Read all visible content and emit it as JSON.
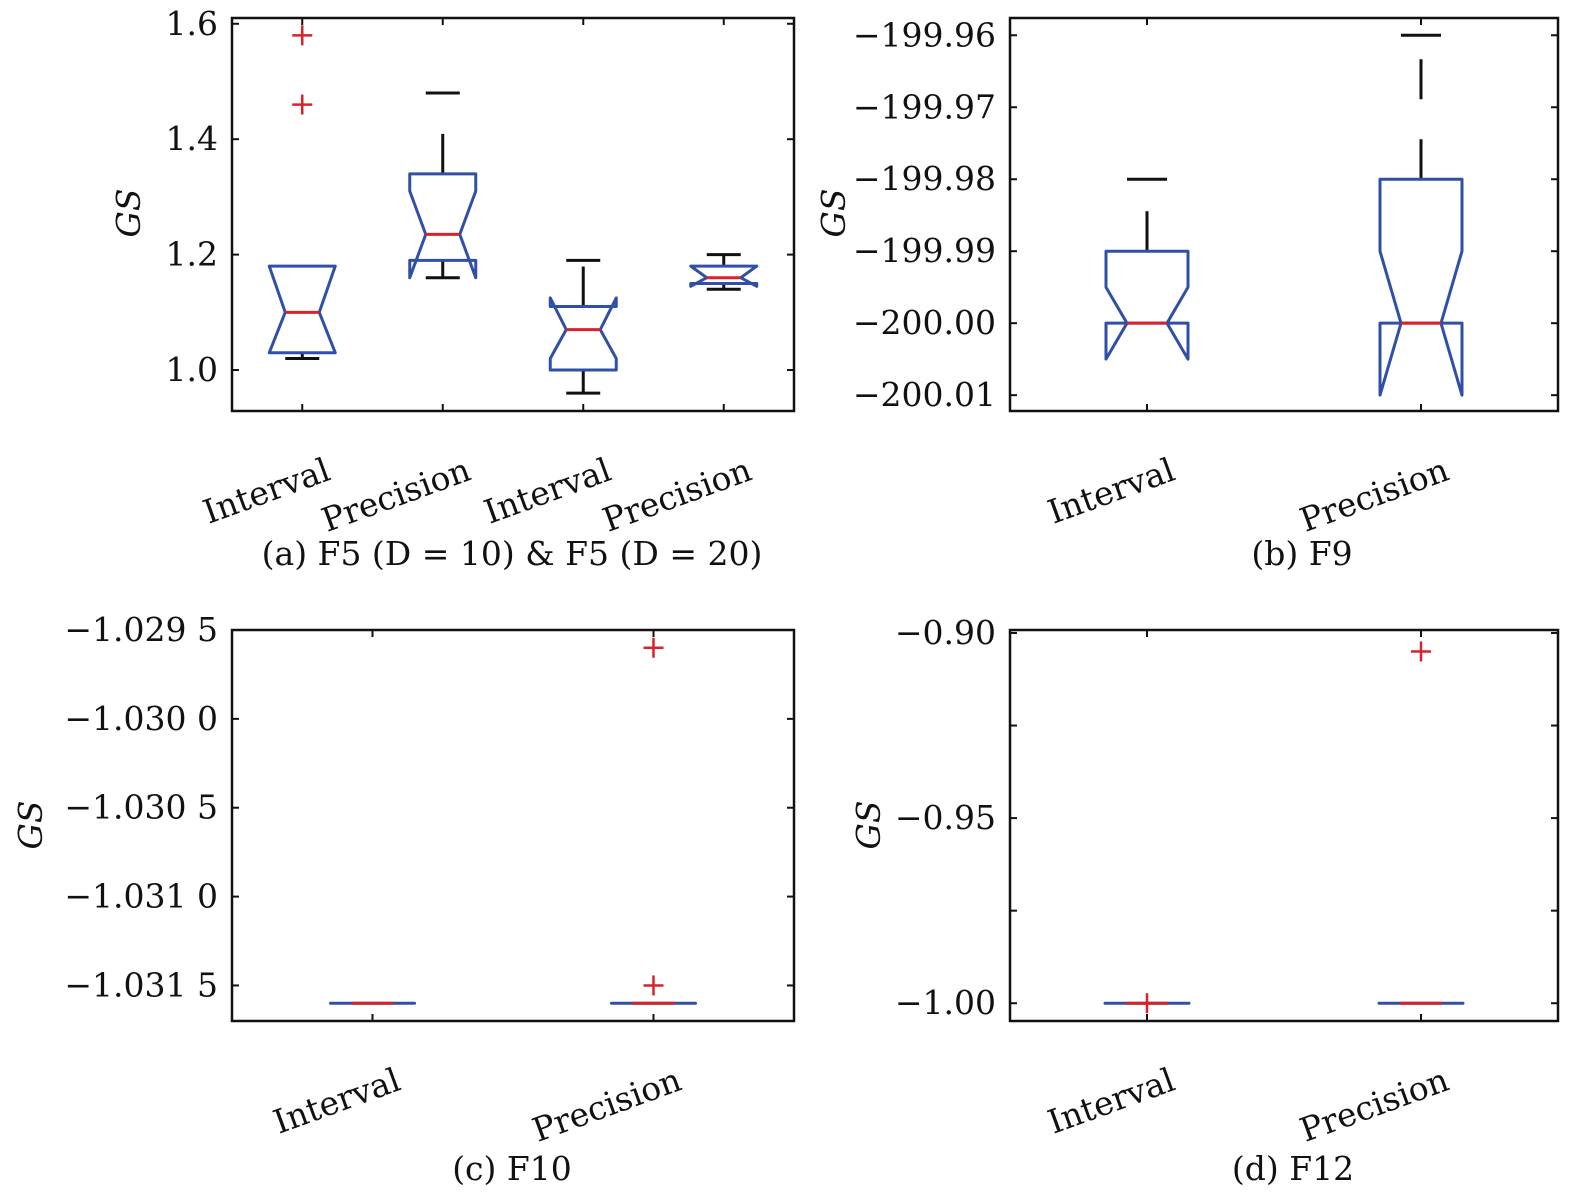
{
  "colors": {
    "box": "#3050a8",
    "median": "#d8232a",
    "whisker": "#111111",
    "outlier": "#d8232a"
  },
  "chart_data": [
    {
      "type": "boxplot",
      "caption": "(a) F5 (D = 10) & F5 (D = 20)",
      "ylabel": "GS",
      "ylim": [
        0.929,
        1.61
      ],
      "yticks": [
        1.0,
        1.2,
        1.4,
        1.6
      ],
      "ytick_labels": [
        "1.0",
        "1.2",
        "1.4",
        "1.6"
      ],
      "categories": [
        "Interval",
        "Precision",
        "Interval",
        "Precision"
      ],
      "boxes": [
        {
          "q1": 1.03,
          "median": 1.1,
          "q3": 1.18,
          "notch_lo": 1.03,
          "notch_hi": 1.18,
          "whisker_lo": 1.02,
          "whisker_hi": 1.18,
          "outliers": [
            1.58,
            1.46
          ]
        },
        {
          "q1": 1.19,
          "median": 1.235,
          "q3": 1.34,
          "notch_lo": 1.16,
          "notch_hi": 1.31,
          "whisker_lo": 1.16,
          "whisker_hi": 1.48,
          "outliers": []
        },
        {
          "q1": 1.0,
          "median": 1.07,
          "q3": 1.11,
          "notch_lo": 1.02,
          "notch_hi": 1.125,
          "whisker_lo": 0.96,
          "whisker_hi": 1.19,
          "outliers": []
        },
        {
          "q1": 1.15,
          "median": 1.16,
          "q3": 1.18,
          "notch_lo": 1.145,
          "notch_hi": 1.18,
          "whisker_lo": 1.14,
          "whisker_hi": 1.2,
          "outliers": []
        }
      ]
    },
    {
      "type": "boxplot",
      "caption": "(b) F9",
      "ylabel": "GS",
      "ylim": [
        -200.0122,
        -199.9576
      ],
      "yticks": [
        -200.01,
        -200.0,
        -199.99,
        -199.98,
        -199.97,
        -199.96
      ],
      "ytick_labels": [
        "−200.01",
        "−200.00",
        "−199.99",
        "−199.98",
        "−199.97",
        "−199.96"
      ],
      "categories": [
        "Interval",
        "Precision"
      ],
      "boxes": [
        {
          "q1": -200.0,
          "median": -200.0,
          "q3": -199.99,
          "notch_lo": -200.005,
          "notch_hi": -199.995,
          "whisker_lo": -200.0,
          "whisker_hi": -199.98,
          "outliers": []
        },
        {
          "q1": -200.0,
          "median": -200.0,
          "q3": -199.98,
          "notch_lo": -200.01,
          "notch_hi": -199.99,
          "whisker_lo": -200.0,
          "whisker_hi": -199.96,
          "outliers": []
        }
      ]
    },
    {
      "type": "boxplot",
      "caption": "(c) F10",
      "ylabel": "GS",
      "ylim": [
        -1.0317,
        -1.0295
      ],
      "yticks": [
        -1.0315,
        -1.031,
        -1.0305,
        -1.03,
        -1.0295
      ],
      "ytick_labels": [
        "−1.031 5",
        "−1.031 0",
        "−1.030 5",
        "−1.030 0",
        "−1.029 5"
      ],
      "categories": [
        "Interval",
        "Precision"
      ],
      "boxes": [
        {
          "q1": -1.0316,
          "median": -1.0316,
          "q3": -1.0316,
          "notch_lo": -1.0316,
          "notch_hi": -1.0316,
          "whisker_lo": -1.0316,
          "whisker_hi": -1.0316,
          "outliers": []
        },
        {
          "q1": -1.0316,
          "median": -1.0316,
          "q3": -1.0316,
          "notch_lo": -1.0316,
          "notch_hi": -1.0316,
          "whisker_lo": -1.0316,
          "whisker_hi": -1.0316,
          "outliers": [
            -1.0296,
            -1.0315
          ]
        }
      ]
    },
    {
      "type": "boxplot",
      "caption": "(d) F12",
      "ylabel": "GS",
      "ylim": [
        -1.0048,
        -0.8992
      ],
      "yticks": [
        -1.0,
        -0.975,
        -0.95,
        -0.925,
        -0.9
      ],
      "ytick_labels": [
        "−1.00",
        "",
        "−0.95",
        "",
        "−0.90"
      ],
      "categories": [
        "Interval",
        "Precision"
      ],
      "boxes": [
        {
          "q1": -1.0,
          "median": -1.0,
          "q3": -1.0,
          "notch_lo": -1.0,
          "notch_hi": -1.0,
          "whisker_lo": -1.0,
          "whisker_hi": -1.0,
          "outliers": [
            -1.0
          ]
        },
        {
          "q1": -1.0,
          "median": -1.0,
          "q3": -1.0,
          "notch_lo": -1.0,
          "notch_hi": -1.0,
          "whisker_lo": -1.0,
          "whisker_hi": -1.0,
          "outliers": [
            -0.905
          ]
        }
      ]
    }
  ]
}
